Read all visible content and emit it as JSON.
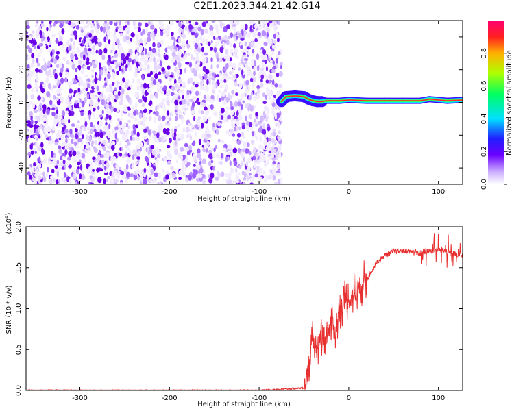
{
  "title": "C2E1.2023.344.21.42.G14",
  "chart_data": [
    {
      "type": "heatmap",
      "xlabel": "Height of straight line (km)",
      "ylabel": "Frequency (Hz)",
      "xlim": [
        -360,
        127
      ],
      "ylim": [
        -50,
        50
      ],
      "xticks": [
        -300,
        -200,
        -100,
        0,
        100
      ],
      "yticks": [
        -40,
        -20,
        0,
        20,
        40
      ],
      "noise_region_x": [
        -360,
        -75
      ],
      "signal_line": {
        "x": [
          -75,
          -70,
          -60,
          -50,
          -45,
          -40,
          -35,
          -30,
          -25,
          -20,
          -10,
          0,
          20,
          40,
          60,
          80,
          90,
          100,
          110,
          127
        ],
        "freq": [
          0.5,
          3.5,
          4,
          3.5,
          2,
          1,
          0.5,
          0.5,
          1,
          1,
          1,
          1.5,
          1,
          1,
          1,
          1,
          2,
          1.5,
          1,
          1.5
        ]
      },
      "colorbar": {
        "label": "Normalized spectral amplitude",
        "range": [
          0,
          1
        ],
        "ticks": [
          0.0,
          0.2,
          0.4,
          0.6,
          0.8
        ]
      }
    },
    {
      "type": "line",
      "xlabel": "Height of straight line (km)",
      "ylabel": "SNR (10 * v/v)",
      "multiplier_label": "(x10",
      "multiplier_exp": "4",
      "xlim": [
        -360,
        127
      ],
      "ylim": [
        0,
        2.0
      ],
      "xticks": [
        -300,
        -200,
        -100,
        0,
        100
      ],
      "yticks": [
        "0.0",
        "0.5",
        "1.0",
        "1.5",
        "2.0"
      ],
      "series": [
        {
          "color": "#e83030",
          "x": [
            -360,
            -100,
            -50,
            -45,
            -40,
            -35,
            -30,
            -25,
            -20,
            -15,
            -10,
            -5,
            0,
            10,
            20,
            30,
            40,
            50,
            60,
            70,
            80,
            90,
            100,
            110,
            120,
            127
          ],
          "y": [
            0.0,
            0.0,
            0.03,
            0.25,
            0.6,
            0.55,
            0.7,
            0.65,
            0.8,
            0.7,
            1.0,
            1.1,
            1.1,
            1.25,
            1.35,
            1.55,
            1.65,
            1.7,
            1.7,
            1.7,
            1.68,
            1.7,
            1.72,
            1.7,
            1.65,
            1.65
          ]
        }
      ]
    }
  ]
}
